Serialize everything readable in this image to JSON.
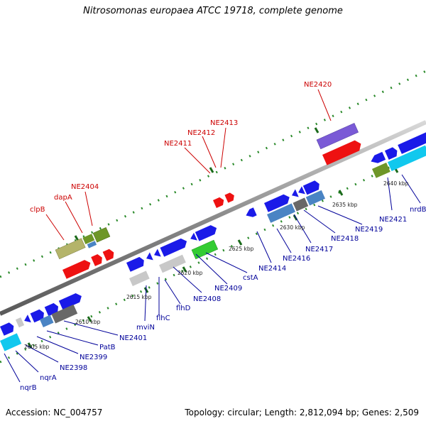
{
  "title": "Nitrosomonas europaea ATCC 19718, complete genome",
  "footer": {
    "accession": "Accession: NC_004757",
    "topology": "Topology: circular; Length: 2,812,094 bp; Genes: 2,509"
  },
  "colors": {
    "backbone": "#8a8a8a",
    "scale_ticks": "#2a8a2a",
    "upper_label": "#cc0000",
    "lower_label": "#000099",
    "gene_red": "#ee1111",
    "gene_blue": "#1a1ae8",
    "gene_steel": "#4a84c4",
    "gene_cyan": "#11c8ee",
    "gene_gray": "#686868",
    "gene_lightgray": "#c8c8c8",
    "gene_khaki": "#b4b46a",
    "gene_olive": "#6e9628",
    "gene_green": "#33cc33",
    "gene_purple": "#7a5ad6"
  },
  "upper_labels": [
    "clpB",
    "dapA",
    "NE2404",
    "NE2411",
    "NE2412",
    "NE2413",
    "NE2420"
  ],
  "lower_labels": [
    "nqrB",
    "nqrA",
    "NE2398",
    "NE2399",
    "PatB",
    "NE2401",
    "mviN",
    "flhC",
    "flhD",
    "NE2408",
    "NE2409",
    "cstA",
    "NE2414",
    "NE2416",
    "NE2417",
    "NE2418",
    "NE2419",
    "NE2421",
    "nrdB"
  ],
  "scale_labels": [
    "2605 kbp",
    "2610 kbp",
    "2615 kbp",
    "2620 kbp",
    "2625 kbp",
    "2630 kbp",
    "2635 kbp",
    "2640 kbp"
  ]
}
